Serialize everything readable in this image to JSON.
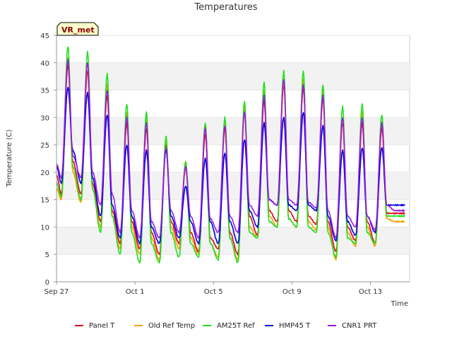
{
  "chart_data": {
    "type": "line",
    "title": "Temperatures",
    "xlabel": "Time",
    "ylabel": "Temperature (C)",
    "badge": "VR_met",
    "ylim": [
      0,
      45
    ],
    "yticks": [
      0,
      5,
      10,
      15,
      20,
      25,
      30,
      35,
      40,
      45
    ],
    "xlim": [
      "2023-09-27",
      "2023-10-15"
    ],
    "xticks": [
      {
        "date": "2023-09-27",
        "label": "Sep 27"
      },
      {
        "date": "2023-10-01",
        "label": "Oct 1"
      },
      {
        "date": "2023-10-05",
        "label": "Oct 5"
      },
      {
        "date": "2023-10-09",
        "label": "Oct 9"
      },
      {
        "date": "2023-10-13",
        "label": "Oct 13"
      }
    ],
    "grid": "horizontal bands",
    "legend_position": "bottom",
    "series": [
      {
        "name": "Panel T",
        "color": "#e0001b",
        "x": [
          "2023-09-27 00:00",
          "2023-09-27 06:00",
          "2023-09-27 14:00",
          "2023-09-27 20:00",
          "2023-09-28 06:00",
          "2023-09-28 14:00",
          "2023-09-28 20:00",
          "2023-09-29 06:00",
          "2023-09-29 14:00",
          "2023-09-29 20:00",
          "2023-09-30 06:00",
          "2023-09-30 14:00",
          "2023-09-30 20:00",
          "2023-10-01 06:00",
          "2023-10-01 14:00",
          "2023-10-01 20:00",
          "2023-10-02 06:00",
          "2023-10-02 14:00",
          "2023-10-02 20:00",
          "2023-10-03 06:00",
          "2023-10-03 14:00",
          "2023-10-03 20:00",
          "2023-10-04 06:00",
          "2023-10-04 14:00",
          "2023-10-04 20:00",
          "2023-10-05 06:00",
          "2023-10-05 14:00",
          "2023-10-05 20:00",
          "2023-10-06 06:00",
          "2023-10-06 14:00",
          "2023-10-06 20:00",
          "2023-10-07 06:00",
          "2023-10-07 14:00",
          "2023-10-07 20:00",
          "2023-10-08 06:00",
          "2023-10-08 14:00",
          "2023-10-08 20:00",
          "2023-10-09 06:00",
          "2023-10-09 14:00",
          "2023-10-09 20:00",
          "2023-10-10 06:00",
          "2023-10-10 14:00",
          "2023-10-10 20:00",
          "2023-10-11 06:00",
          "2023-10-11 14:00",
          "2023-10-11 20:00",
          "2023-10-12 06:00",
          "2023-10-12 14:00",
          "2023-10-12 20:00",
          "2023-10-13 06:00",
          "2023-10-13 14:00",
          "2023-10-13 20:00",
          "2023-10-14 06:00",
          "2023-10-14 14:00",
          "2023-10-14 18:00"
        ],
        "y": [
          19.5,
          16,
          39.5,
          22,
          16,
          38.5,
          18,
          11,
          34,
          13,
          7,
          29,
          11,
          6,
          28,
          9,
          5,
          25,
          11,
          7,
          21,
          9,
          5.5,
          27,
          8,
          6,
          28,
          9,
          5,
          31,
          12,
          8.5,
          33,
          13,
          11,
          36,
          13,
          11,
          35.5,
          12,
          10.5,
          33.5,
          11,
          5.5,
          29,
          10,
          7.5,
          29,
          11,
          7,
          28,
          12.5,
          12.5,
          12.5,
          12.5
        ]
      },
      {
        "name": "Old Ref Temp",
        "color": "#f5a000",
        "x": [
          "2023-09-27 00:00",
          "2023-09-27 06:00",
          "2023-09-27 14:00",
          "2023-09-27 20:00",
          "2023-09-28 06:00",
          "2023-09-28 14:00",
          "2023-09-28 20:00",
          "2023-09-29 06:00",
          "2023-09-29 14:00",
          "2023-09-29 20:00",
          "2023-09-30 06:00",
          "2023-09-30 14:00",
          "2023-09-30 20:00",
          "2023-10-01 06:00",
          "2023-10-01 14:00",
          "2023-10-01 20:00",
          "2023-10-02 06:00",
          "2023-10-02 14:00",
          "2023-10-02 20:00",
          "2023-10-03 06:00",
          "2023-10-03 14:00",
          "2023-10-03 20:00",
          "2023-10-04 06:00",
          "2023-10-04 14:00",
          "2023-10-04 20:00",
          "2023-10-05 06:00",
          "2023-10-05 14:00",
          "2023-10-05 20:00",
          "2023-10-06 06:00",
          "2023-10-06 14:00",
          "2023-10-06 20:00",
          "2023-10-07 06:00",
          "2023-10-07 14:00",
          "2023-10-07 20:00",
          "2023-10-08 06:00",
          "2023-10-08 14:00",
          "2023-10-08 20:00",
          "2023-10-09 06:00",
          "2023-10-09 14:00",
          "2023-10-09 20:00",
          "2023-10-10 06:00",
          "2023-10-10 14:00",
          "2023-10-10 20:00",
          "2023-10-11 06:00",
          "2023-10-11 14:00",
          "2023-10-11 20:00",
          "2023-10-12 06:00",
          "2023-10-12 14:00",
          "2023-10-12 20:00",
          "2023-10-13 06:00",
          "2023-10-13 14:00",
          "2023-10-13 20:00",
          "2023-10-14 06:00",
          "2023-10-14 14:00",
          "2023-10-14 18:00"
        ],
        "y": [
          17,
          15,
          41,
          20,
          14.5,
          40,
          17,
          10,
          36,
          12,
          6,
          31,
          10,
          5,
          30,
          8,
          4,
          26,
          10,
          6,
          22,
          8,
          5,
          29,
          7,
          4.5,
          29,
          8,
          4,
          32,
          10,
          8,
          35,
          12,
          10,
          37,
          11.5,
          10,
          37,
          11,
          9.5,
          35,
          10,
          4,
          30,
          9,
          6.5,
          31,
          10,
          6.5,
          29,
          11.5,
          11,
          11,
          11
        ]
      },
      {
        "name": "AM25T Ref",
        "color": "#1ee01e",
        "x": [
          "2023-09-27 00:00",
          "2023-09-27 06:00",
          "2023-09-27 14:00",
          "2023-09-27 20:00",
          "2023-09-28 06:00",
          "2023-09-28 14:00",
          "2023-09-28 20:00",
          "2023-09-29 06:00",
          "2023-09-29 14:00",
          "2023-09-29 20:00",
          "2023-09-30 06:00",
          "2023-09-30 14:00",
          "2023-09-30 20:00",
          "2023-10-01 06:00",
          "2023-10-01 14:00",
          "2023-10-01 20:00",
          "2023-10-02 06:00",
          "2023-10-02 14:00",
          "2023-10-02 20:00",
          "2023-10-03 06:00",
          "2023-10-03 14:00",
          "2023-10-03 20:00",
          "2023-10-04 06:00",
          "2023-10-04 14:00",
          "2023-10-04 20:00",
          "2023-10-05 06:00",
          "2023-10-05 14:00",
          "2023-10-05 20:00",
          "2023-10-06 06:00",
          "2023-10-06 14:00",
          "2023-10-06 20:00",
          "2023-10-07 06:00",
          "2023-10-07 14:00",
          "2023-10-07 20:00",
          "2023-10-08 06:00",
          "2023-10-08 14:00",
          "2023-10-08 20:00",
          "2023-10-09 06:00",
          "2023-10-09 14:00",
          "2023-10-09 20:00",
          "2023-10-10 06:00",
          "2023-10-10 14:00",
          "2023-10-10 20:00",
          "2023-10-11 06:00",
          "2023-10-11 14:00",
          "2023-10-11 20:00",
          "2023-10-12 06:00",
          "2023-10-12 14:00",
          "2023-10-12 20:00",
          "2023-10-13 06:00",
          "2023-10-13 14:00",
          "2023-10-13 20:00",
          "2023-10-14 06:00",
          "2023-10-14 14:00",
          "2023-10-14 18:00"
        ],
        "y": [
          18,
          15.5,
          43,
          21,
          15,
          42,
          17,
          9,
          38,
          12,
          5,
          32.5,
          9,
          3.5,
          31,
          7,
          3.5,
          26.5,
          9,
          4.5,
          22,
          7,
          4.5,
          29,
          7,
          4,
          30,
          8,
          3.5,
          33,
          9,
          8,
          36.5,
          11,
          10,
          38.5,
          11.5,
          10,
          38.5,
          10,
          9,
          36,
          9,
          4.5,
          32,
          8,
          7,
          32.5,
          9,
          7,
          30.5,
          12,
          12,
          12,
          12
        ]
      },
      {
        "name": "HMP45 T",
        "color": "#0000e0",
        "x": [
          "2023-09-27 00:00",
          "2023-09-27 06:00",
          "2023-09-27 14:00",
          "2023-09-27 20:00",
          "2023-09-28 06:00",
          "2023-09-28 14:00",
          "2023-09-28 20:00",
          "2023-09-29 06:00",
          "2023-09-29 14:00",
          "2023-09-29 20:00",
          "2023-09-30 06:00",
          "2023-09-30 14:00",
          "2023-09-30 20:00",
          "2023-10-01 06:00",
          "2023-10-01 14:00",
          "2023-10-01 20:00",
          "2023-10-02 06:00",
          "2023-10-02 14:00",
          "2023-10-02 20:00",
          "2023-10-03 06:00",
          "2023-10-03 14:00",
          "2023-10-03 20:00",
          "2023-10-04 06:00",
          "2023-10-04 14:00",
          "2023-10-04 20:00",
          "2023-10-05 06:00",
          "2023-10-05 14:00",
          "2023-10-05 20:00",
          "2023-10-06 06:00",
          "2023-10-06 14:00",
          "2023-10-06 20:00",
          "2023-10-07 06:00",
          "2023-10-07 14:00",
          "2023-10-07 20:00",
          "2023-10-08 06:00",
          "2023-10-08 14:00",
          "2023-10-08 20:00",
          "2023-10-09 06:00",
          "2023-10-09 14:00",
          "2023-10-09 20:00",
          "2023-10-10 06:00",
          "2023-10-10 14:00",
          "2023-10-10 20:00",
          "2023-10-11 06:00",
          "2023-10-11 14:00",
          "2023-10-11 20:00",
          "2023-10-12 06:00",
          "2023-10-12 14:00",
          "2023-10-12 20:00",
          "2023-10-13 06:00",
          "2023-10-13 14:00",
          "2023-10-13 20:00",
          "2023-10-14 06:00",
          "2023-10-14 14:00",
          "2023-10-14 18:00"
        ],
        "y": [
          21,
          18,
          35.5,
          24,
          18,
          34.5,
          19,
          12,
          30.5,
          14,
          8,
          25,
          12,
          7,
          24,
          10,
          7,
          24,
          12,
          8,
          17.5,
          11,
          7,
          22.5,
          11,
          7,
          23.5,
          11,
          7,
          26,
          13,
          10,
          29,
          15,
          14,
          30,
          14,
          13,
          31,
          14,
          13,
          28.5,
          12,
          7.5,
          24,
          11,
          8.5,
          24.5,
          12,
          9,
          24.5,
          14,
          14,
          14,
          14
        ]
      },
      {
        "name": "CNR1 PRT",
        "color": "#9b1be0",
        "x": [
          "2023-09-27 00:00",
          "2023-09-27 06:00",
          "2023-09-27 14:00",
          "2023-09-27 20:00",
          "2023-09-28 06:00",
          "2023-09-28 14:00",
          "2023-09-28 20:00",
          "2023-09-29 06:00",
          "2023-09-29 14:00",
          "2023-09-29 20:00",
          "2023-09-30 06:00",
          "2023-09-30 14:00",
          "2023-09-30 20:00",
          "2023-10-01 06:00",
          "2023-10-01 14:00",
          "2023-10-01 20:00",
          "2023-10-02 06:00",
          "2023-10-02 14:00",
          "2023-10-02 20:00",
          "2023-10-03 06:00",
          "2023-10-03 14:00",
          "2023-10-03 20:00",
          "2023-10-04 06:00",
          "2023-10-04 14:00",
          "2023-10-04 20:00",
          "2023-10-05 06:00",
          "2023-10-05 14:00",
          "2023-10-05 20:00",
          "2023-10-06 06:00",
          "2023-10-06 14:00",
          "2023-10-06 20:00",
          "2023-10-07 06:00",
          "2023-10-07 14:00",
          "2023-10-07 20:00",
          "2023-10-08 06:00",
          "2023-10-08 14:00",
          "2023-10-08 20:00",
          "2023-10-09 06:00",
          "2023-10-09 14:00",
          "2023-10-09 20:00",
          "2023-10-10 06:00",
          "2023-10-10 14:00",
          "2023-10-10 20:00",
          "2023-10-11 06:00",
          "2023-10-11 14:00",
          "2023-10-11 20:00",
          "2023-10-12 06:00",
          "2023-10-12 14:00",
          "2023-10-12 20:00",
          "2023-10-13 06:00",
          "2023-10-13 14:00",
          "2023-10-13 20:00",
          "2023-10-14 06:00",
          "2023-10-14 14:00",
          "2023-10-14 18:00"
        ],
        "y": [
          21.5,
          19,
          40.5,
          23,
          19,
          40,
          20,
          14,
          35,
          16,
          9,
          30,
          13,
          8,
          29,
          11,
          8,
          24.5,
          13,
          9,
          21,
          12,
          8,
          28,
          11.5,
          9,
          28.5,
          12,
          9,
          31,
          14,
          12,
          34,
          15,
          14,
          37,
          15,
          14,
          36,
          14.5,
          13.5,
          34,
          13,
          8,
          30,
          12,
          10,
          30,
          12,
          9.5,
          29,
          14,
          13,
          13,
          13
        ]
      }
    ]
  }
}
